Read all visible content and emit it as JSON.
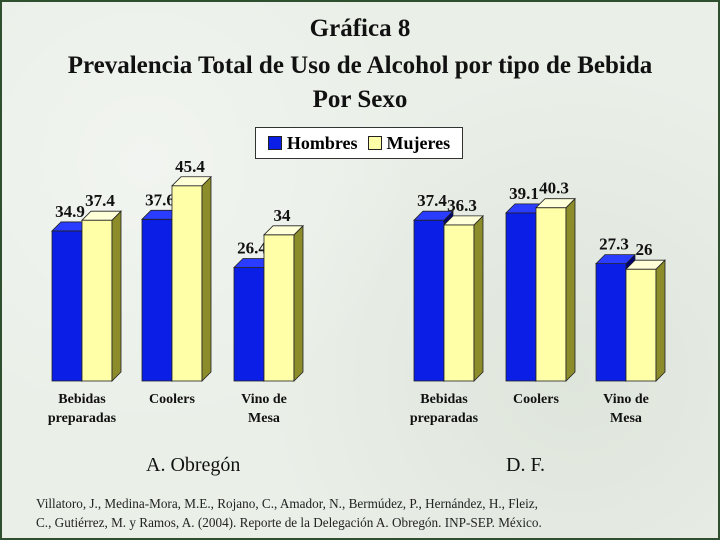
{
  "title": {
    "line1": "Gráfica 8",
    "line2": "Prevalencia Total de Uso de Alcohol por tipo de Bebida",
    "line3": "Por Sexo"
  },
  "legend": [
    {
      "label": "Hombres",
      "color": "#0a1ee6"
    },
    {
      "label": "Mujeres",
      "color": "#ffffa8"
    }
  ],
  "chart_data": [
    {
      "type": "bar",
      "title": "A. Obregón",
      "categories": [
        "Bebidas preparadas",
        "Coolers",
        "Vino de Mesa"
      ],
      "series": [
        {
          "name": "Hombres",
          "values": [
            34.9,
            37.6,
            26.4
          ]
        },
        {
          "name": "Mujeres",
          "values": [
            37.4,
            45.4,
            34
          ]
        }
      ],
      "data_labels": [
        [
          "34.9",
          "37.6",
          "26.4"
        ],
        [
          "37.4",
          "45.4",
          "34"
        ]
      ],
      "ylim": [
        0,
        45.4
      ],
      "grid": false,
      "legend_position": "top-center"
    },
    {
      "type": "bar",
      "title": "D. F.",
      "categories": [
        "Bebidas preparadas",
        "Coolers",
        "Vino de Mesa"
      ],
      "series": [
        {
          "name": "Hombres",
          "values": [
            37.4,
            39.1,
            27.3
          ]
        },
        {
          "name": "Mujeres",
          "values": [
            36.3,
            40.3,
            26
          ]
        }
      ],
      "data_labels": [
        [
          "37.4",
          "39.1",
          "27.3"
        ],
        [
          "36.3",
          "40.3",
          "26"
        ]
      ],
      "ylim": [
        0,
        45.4
      ],
      "grid": false,
      "legend_position": "top-center"
    }
  ],
  "category_labels": [
    [
      "Bebidas",
      "preparadas"
    ],
    [
      "Coolers"
    ],
    [
      "Vino de",
      "Mesa"
    ]
  ],
  "citation": {
    "line1": "Villatoro, J., Medina-Mora, M.E., Rojano, C., Amador, N., Bermúdez, P., Hernández, H., Fleiz,",
    "line2": "C., Gutiérrez, M. y Ramos, A. (2004). Reporte de la Delegación A. Obregón. INP-SEP. México."
  }
}
